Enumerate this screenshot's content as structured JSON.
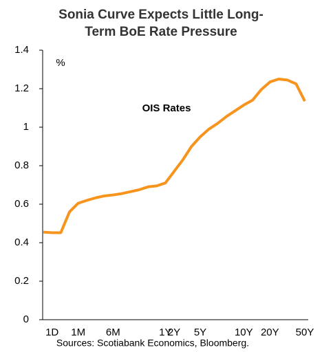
{
  "chart_data": {
    "type": "line",
    "title": [
      "Sonia Curve Expects Little Long-",
      "Term BoE Rate Pressure"
    ],
    "y_label": "%",
    "annotation": "OIS Rates",
    "source": "Sources: Scotiabank Economics, Bloomberg.",
    "categories": [
      null,
      "1D",
      null,
      null,
      "1M",
      null,
      null,
      null,
      "6M",
      null,
      null,
      null,
      null,
      null,
      "1Y",
      "2Y",
      null,
      null,
      "5Y",
      null,
      null,
      null,
      null,
      "10Y",
      null,
      null,
      "20Y",
      null,
      null,
      null,
      "50Y"
    ],
    "series": [
      {
        "name": "OIS Rates",
        "color": "#f7941d",
        "values": [
          0.455,
          0.452,
          0.452,
          0.56,
          0.605,
          0.62,
          0.633,
          0.643,
          0.648,
          0.655,
          0.665,
          0.675,
          0.69,
          0.695,
          0.71,
          0.77,
          0.83,
          0.9,
          0.95,
          0.99,
          1.02,
          1.055,
          1.085,
          1.115,
          1.14,
          1.195,
          1.235,
          1.25,
          1.245,
          1.225,
          1.135
        ]
      }
    ],
    "ylim": [
      0,
      1.4
    ],
    "yticks": [
      0,
      0.2,
      0.4,
      0.6,
      0.8,
      1,
      1.2,
      1.4
    ],
    "grid": false
  }
}
